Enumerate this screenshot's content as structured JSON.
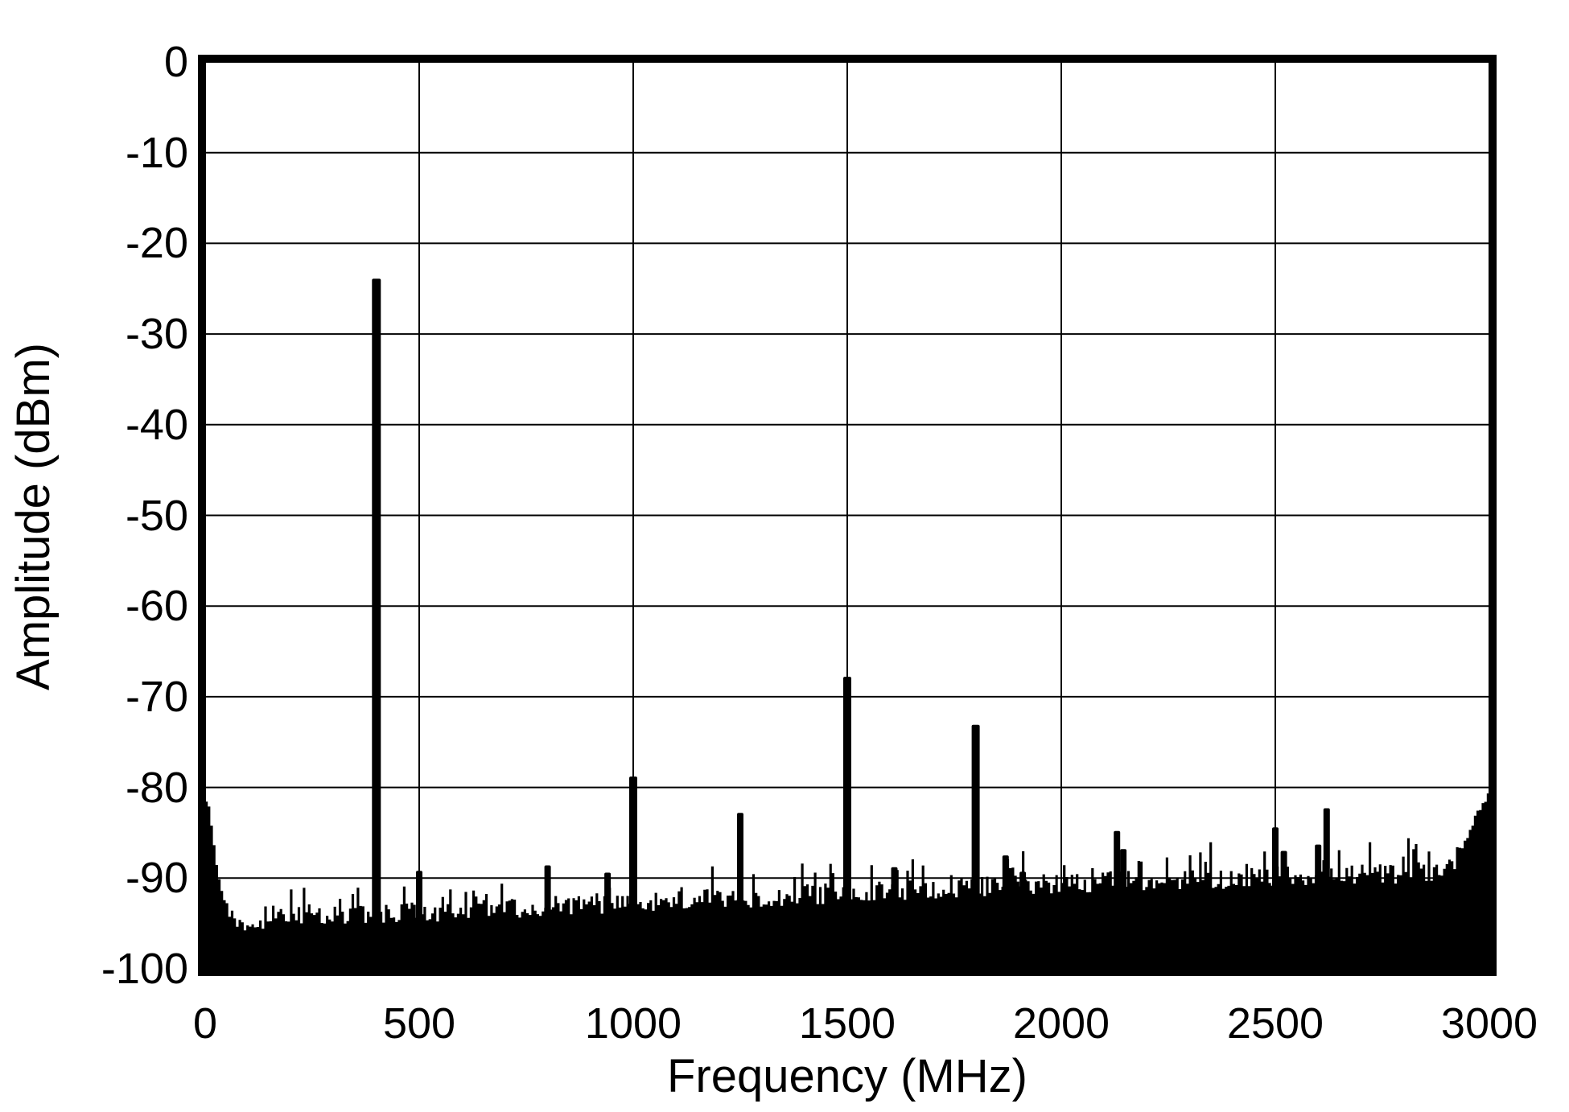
{
  "figure": {
    "background": "#ffffff",
    "foreground": "#000000"
  },
  "chart_data": {
    "type": "area",
    "title": "",
    "xlabel": "Frequency (MHz)",
    "ylabel": "Amplitude (dBm)",
    "xlim": [
      0,
      3000
    ],
    "ylim": [
      -100,
      0
    ],
    "xticks": [
      0,
      500,
      1000,
      1500,
      2000,
      2500,
      3000
    ],
    "yticks": [
      0,
      -10,
      -20,
      -30,
      -40,
      -50,
      -60,
      -70,
      -80,
      -90,
      -100
    ],
    "grid": true,
    "legend": "none",
    "series_color": "#000000",
    "noise_floor_envelope": [
      [
        0,
        -80.8
      ],
      [
        6,
        -81.3
      ],
      [
        14,
        -83.5
      ],
      [
        22,
        -86.8
      ],
      [
        30,
        -89.2
      ],
      [
        40,
        -91.2
      ],
      [
        50,
        -93.0
      ],
      [
        60,
        -94.4
      ],
      [
        100,
        -94.2
      ],
      [
        200,
        -93.8
      ],
      [
        350,
        -93.5
      ],
      [
        500,
        -93.2
      ],
      [
        650,
        -93.0
      ],
      [
        800,
        -92.6
      ],
      [
        950,
        -92.2
      ],
      [
        1100,
        -91.9
      ],
      [
        1250,
        -91.6
      ],
      [
        1400,
        -91.3
      ],
      [
        1550,
        -91.0
      ],
      [
        1700,
        -90.7
      ],
      [
        1850,
        -90.3
      ],
      [
        2000,
        -90.0
      ],
      [
        2150,
        -89.8
      ],
      [
        2300,
        -89.6
      ],
      [
        2450,
        -89.4
      ],
      [
        2600,
        -89.1
      ],
      [
        2750,
        -89.0
      ],
      [
        2870,
        -88.7
      ],
      [
        2915,
        -87.8
      ],
      [
        2940,
        -86.0
      ],
      [
        2960,
        -83.8
      ],
      [
        2980,
        -81.8
      ],
      [
        3000,
        -80.4
      ]
    ],
    "peaks": [
      {
        "freq": 400,
        "dBm": -23.9
      },
      {
        "freq": 500,
        "dBm": -89.2
      },
      {
        "freq": 800,
        "dBm": -88.6
      },
      {
        "freq": 940,
        "dBm": -89.4
      },
      {
        "freq": 1000,
        "dBm": -78.8
      },
      {
        "freq": 1250,
        "dBm": -82.8
      },
      {
        "freq": 1500,
        "dBm": -67.8
      },
      {
        "freq": 1610,
        "dBm": -88.8
      },
      {
        "freq": 1800,
        "dBm": -73.1
      },
      {
        "freq": 1870,
        "dBm": -87.5
      },
      {
        "freq": 1910,
        "dBm": -89.3
      },
      {
        "freq": 2130,
        "dBm": -84.8
      },
      {
        "freq": 2145,
        "dBm": -86.8
      },
      {
        "freq": 2500,
        "dBm": -84.4
      },
      {
        "freq": 2520,
        "dBm": -87.0
      },
      {
        "freq": 2600,
        "dBm": -86.3
      },
      {
        "freq": 2620,
        "dBm": -82.3
      }
    ]
  }
}
